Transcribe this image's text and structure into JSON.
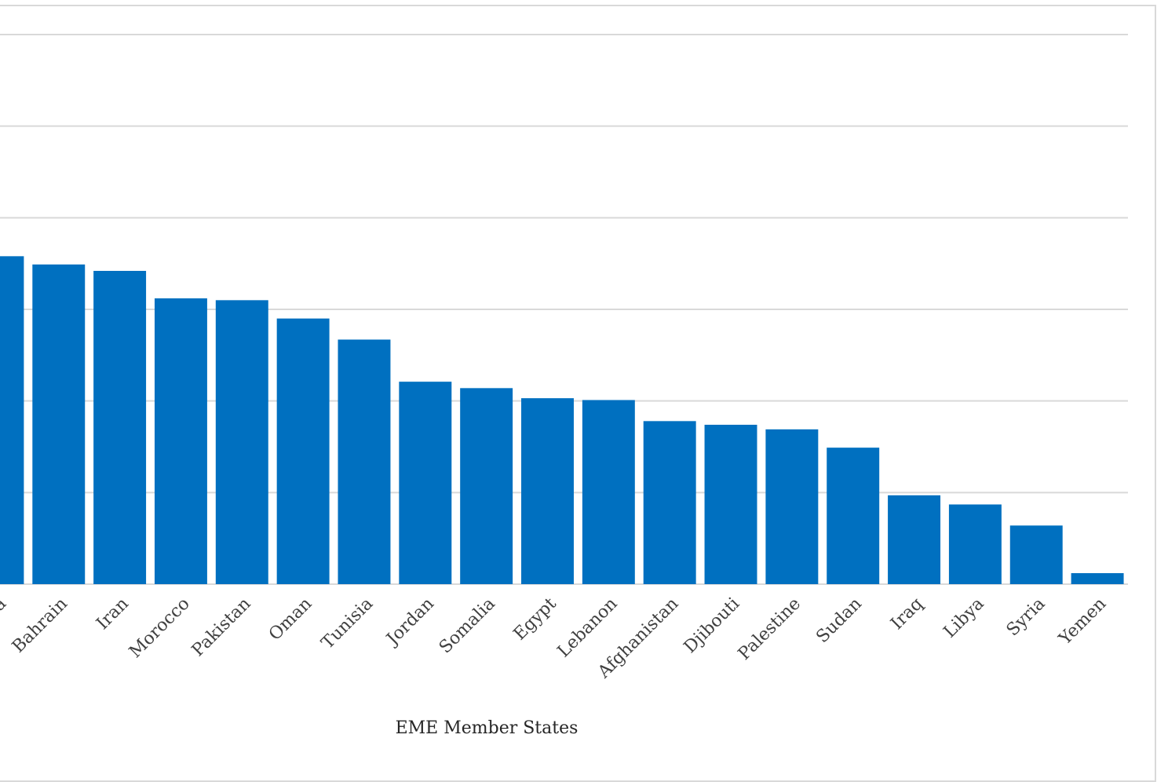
{
  "chart_data": {
    "type": "bar",
    "title": "",
    "xlabel": "EME Member States",
    "ylabel": "",
    "categories": [
      "Saudi Arabia",
      "Bahrain",
      "Iran",
      "Morocco",
      "Pakistan",
      "Oman",
      "Tunisia",
      "Jordan",
      "Somalia",
      "Egypt",
      "Lebanon",
      "Afghanistan",
      "Djibouti",
      "Palestine",
      "Sudan",
      "Iraq",
      "Libya",
      "Syria",
      "Yemen"
    ],
    "values": [
      3.58,
      3.49,
      3.42,
      3.12,
      3.1,
      2.9,
      2.67,
      2.21,
      2.14,
      2.03,
      2.01,
      1.78,
      1.74,
      1.69,
      1.49,
      0.97,
      0.87,
      0.64,
      0.12
    ],
    "ylim": [
      0,
      6
    ],
    "gridlines": true,
    "bar_color": "#0070c0"
  }
}
